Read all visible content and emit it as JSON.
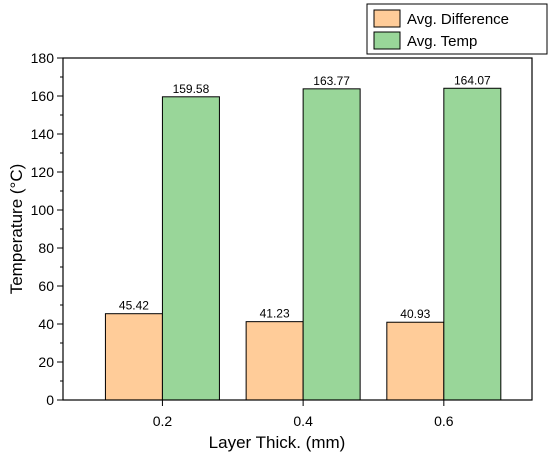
{
  "chart_data": {
    "type": "bar",
    "categories": [
      "0.2",
      "0.4",
      "0.6"
    ],
    "series": [
      {
        "name": "Avg. Difference",
        "values": [
          45.42,
          41.23,
          40.93
        ],
        "labels": [
          "45.42",
          "41.23",
          "40.93"
        ],
        "color": "#FFCC99"
      },
      {
        "name": "Avg. Temp",
        "values": [
          159.58,
          163.77,
          164.07
        ],
        "labels": [
          "159.58",
          "163.77",
          "164.07"
        ],
        "color": "#99D699"
      }
    ],
    "xlabel": "Layer Thick. (mm)",
    "ylabel": "Temperature (°C)",
    "ylim": [
      0,
      180
    ],
    "yticks": [
      "0",
      "20",
      "40",
      "60",
      "80",
      "100",
      "120",
      "140",
      "160",
      "180"
    ],
    "legend_position": "top-right",
    "grid": false
  }
}
